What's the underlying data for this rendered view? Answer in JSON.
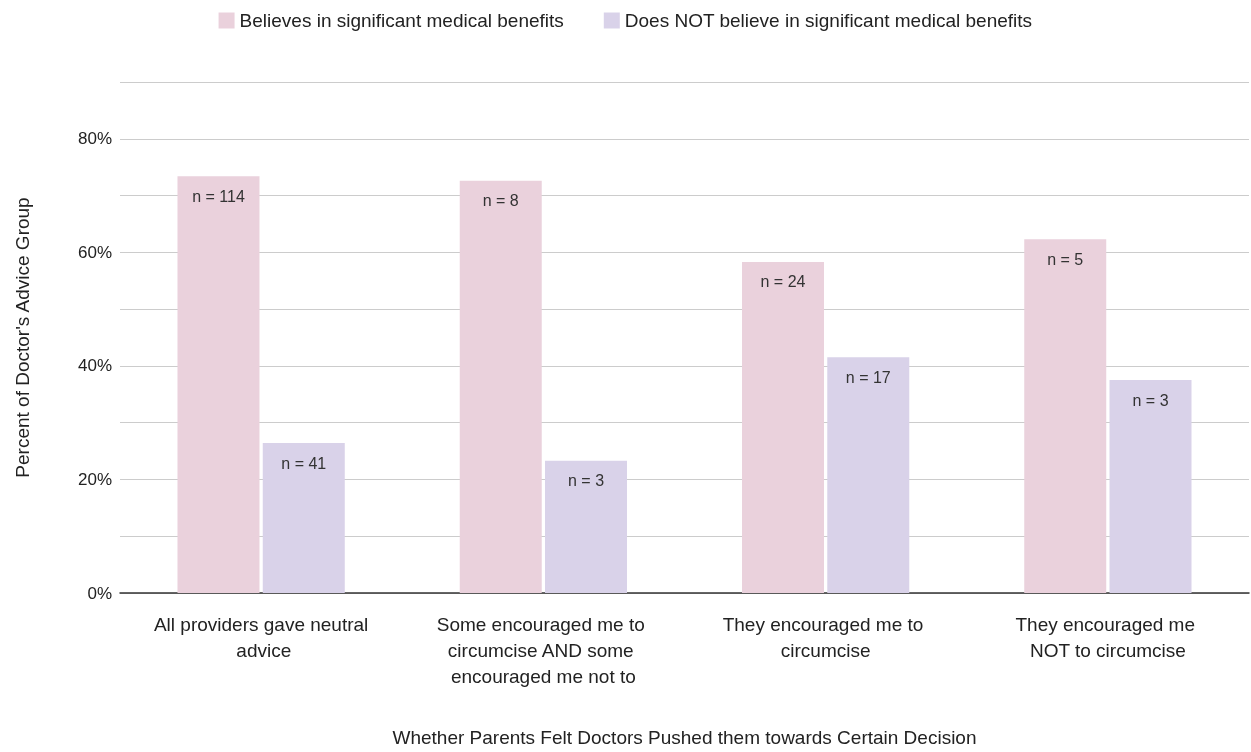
{
  "chart_data": {
    "type": "bar",
    "xlabel": "Whether Parents Felt Doctors Pushed them towards Certain Decision",
    "ylabel": "Percent of Doctor's Advice Group",
    "categories": [
      "All providers gave neutral advice",
      "Some encouraged me to circumcise AND some encouraged me not to",
      "They encouraged me to circumcise",
      "They encouraged me NOT to circumcise"
    ],
    "series": [
      {
        "name": "Believes in significant medical benefits",
        "color": "#ead1dc",
        "values": [
          73.4,
          72.6,
          58.3,
          62.3
        ]
      },
      {
        "name": "Does NOT believe in significant medical benefits",
        "color": "#d9d2e9",
        "values": [
          26.4,
          23.3,
          41.5,
          37.5
        ]
      }
    ],
    "annotations": [
      {
        "text": "n = 114",
        "x": "All providers gave neutral advice",
        "y": 73.4
      },
      {
        "text": "n = 41",
        "x": "All providers gave neutral advice",
        "y": 26.4
      },
      {
        "text": "n = 8",
        "x": "Some encouraged me to circumcise AND some encouraged me not to",
        "y": 72.6
      },
      {
        "text": "n = 3",
        "x": "Some encouraged me to circumcise AND some encouraged me not to",
        "y": 23.3
      },
      {
        "text": "n = 24",
        "x": "They encouraged me to circumcise",
        "y": 58.3
      },
      {
        "text": "n = 17",
        "x": "They encouraged me to circumcise",
        "y": 41.5
      },
      {
        "text": "n = 5",
        "x": "They encouraged me NOT to circumcise",
        "y": 62.3
      },
      {
        "text": "n = 3",
        "x": "They encouraged me NOT to circumcise",
        "y": 37.5
      }
    ],
    "ylim": [
      0,
      90
    ],
    "yticks": [
      {
        "value": 0,
        "label": "0%"
      },
      {
        "value": 10,
        "label": null
      },
      {
        "value": 20,
        "label": "20%"
      },
      {
        "value": 30,
        "label": null
      },
      {
        "value": 40,
        "label": "40%"
      },
      {
        "value": 50,
        "label": null
      },
      {
        "value": 60,
        "label": "60%"
      },
      {
        "value": 70,
        "label": null
      },
      {
        "value": 80,
        "label": "80%"
      },
      {
        "value": 90,
        "label": null
      }
    ],
    "grid": "y",
    "legend": "top"
  }
}
